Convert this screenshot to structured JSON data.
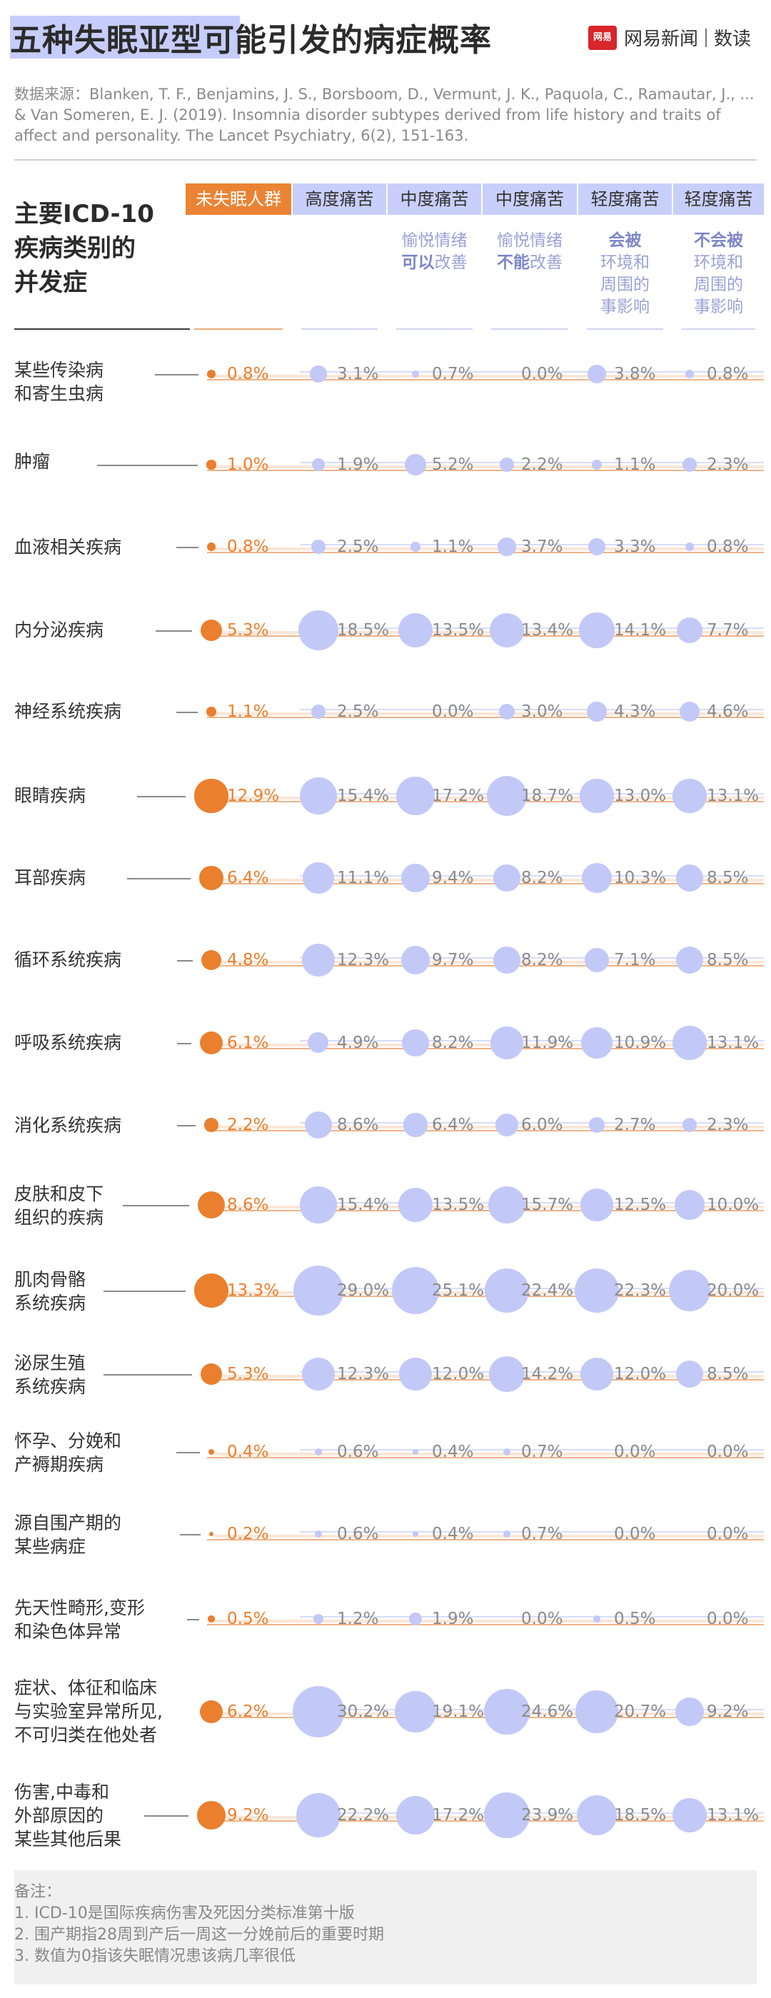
{
  "title": "五种失眠亚型可能引发的病症概率",
  "brand": {
    "badge": "网易",
    "name": "网易新闻",
    "sub": "数读"
  },
  "source": "数据来源：Blanken, T. F., Benjamins, J. S., Borsboom, D., Vermunt, J. K., Paquola, C., Ramautar, J., ... & Van Someren, E. J. (2019). Insomnia disorder subtypes derived from life history and traits of affect and personality. The Lancet Psychiatry, 6(2), 151-163.",
  "row_header": "主要ICD-10\n疾病类别的\n并发症",
  "columns": [
    {
      "label": "未失眠人群",
      "sub": ""
    },
    {
      "label": "高度痛苦",
      "sub": ""
    },
    {
      "label": "中度痛苦",
      "sub_html": "愉悦情绪\n<b>可以</b>改善"
    },
    {
      "label": "中度痛苦",
      "sub_html": "愉悦情绪\n<b>不能</b>改善"
    },
    {
      "label": "轻度痛苦",
      "sub_html": "<b>会被</b>\n环境和\n周围的\n事影响"
    },
    {
      "label": "轻度痛苦",
      "sub_html": "<b>不会被</b>\n环境和\n周围的\n事影响"
    }
  ],
  "colors": {
    "baseline": "#ea7f2e",
    "subtype": "#c2c9f7",
    "title_highlight": "#c6cdfa"
  },
  "chart_data": {
    "type": "bubble-table",
    "unit": "%",
    "series": [
      "未失眠人群",
      "高度痛苦",
      "中度痛苦(愉悦情绪可以改善)",
      "中度痛苦(愉悦情绪不能改善)",
      "轻度痛苦(会被环境和周围的事影响)",
      "轻度痛苦(不会被环境和周围的事影响)"
    ],
    "rows": [
      {
        "label": "某些传染病\n和寄生虫病",
        "values": [
          0.8,
          3.1,
          0.7,
          0.0,
          3.8,
          0.8
        ]
      },
      {
        "label": "肿瘤",
        "values": [
          1.0,
          1.9,
          5.2,
          2.2,
          1.1,
          2.3
        ]
      },
      {
        "label": "血液相关疾病",
        "values": [
          0.8,
          2.5,
          1.1,
          3.7,
          3.3,
          0.8
        ]
      },
      {
        "label": "内分泌疾病",
        "values": [
          5.3,
          18.5,
          13.5,
          13.4,
          14.1,
          7.7
        ]
      },
      {
        "label": "神经系统疾病",
        "values": [
          1.1,
          2.5,
          0.0,
          3.0,
          4.3,
          4.6
        ]
      },
      {
        "label": "眼睛疾病",
        "values": [
          12.9,
          15.4,
          17.2,
          18.7,
          13.0,
          13.1
        ]
      },
      {
        "label": "耳部疾病",
        "values": [
          6.4,
          11.1,
          9.4,
          8.2,
          10.3,
          8.5
        ]
      },
      {
        "label": "循环系统疾病",
        "values": [
          4.8,
          12.3,
          9.7,
          8.2,
          7.1,
          8.5
        ]
      },
      {
        "label": "呼吸系统疾病",
        "values": [
          6.1,
          4.9,
          8.2,
          11.9,
          10.9,
          13.1
        ]
      },
      {
        "label": "消化系统疾病",
        "values": [
          2.2,
          8.6,
          6.4,
          6.0,
          2.7,
          2.3
        ]
      },
      {
        "label": "皮肤和皮下\n组织的疾病",
        "values": [
          8.6,
          15.4,
          13.5,
          15.7,
          12.5,
          10.0
        ]
      },
      {
        "label": "肌肉骨骼\n系统疾病",
        "values": [
          13.3,
          29.0,
          25.1,
          22.4,
          22.3,
          20.0
        ]
      },
      {
        "label": "泌尿生殖\n系统疾病",
        "values": [
          5.3,
          12.3,
          12.0,
          14.2,
          12.0,
          8.5
        ]
      },
      {
        "label": "怀孕、分娩和\n产褥期疾病",
        "values": [
          0.4,
          0.6,
          0.4,
          0.7,
          0.0,
          0.0
        ]
      },
      {
        "label": "源自围产期的\n某些病症",
        "values": [
          0.2,
          0.6,
          0.4,
          0.7,
          0.0,
          0.0
        ]
      },
      {
        "label": "先天性畸形,变形\n和染色体异常",
        "values": [
          0.5,
          1.2,
          1.9,
          0.0,
          0.5,
          0.0
        ]
      },
      {
        "label": "症状、体征和临床\n与实验室异常所见,\n不可归类在他处者",
        "values": [
          6.2,
          30.2,
          19.1,
          24.6,
          20.7,
          9.2
        ]
      },
      {
        "label": "伤害,中毒和\n外部原因的\n某些其他后果",
        "values": [
          9.2,
          22.2,
          17.2,
          23.9,
          18.5,
          13.1
        ]
      }
    ]
  },
  "notes": "备注：\n1. ICD-10是国际疾病伤害及死因分类标准第十版\n2. 围产期指28周到产后一周这一分娩前后的重要时期\n3. 数值为0指该失眠情况患该病几率很低"
}
